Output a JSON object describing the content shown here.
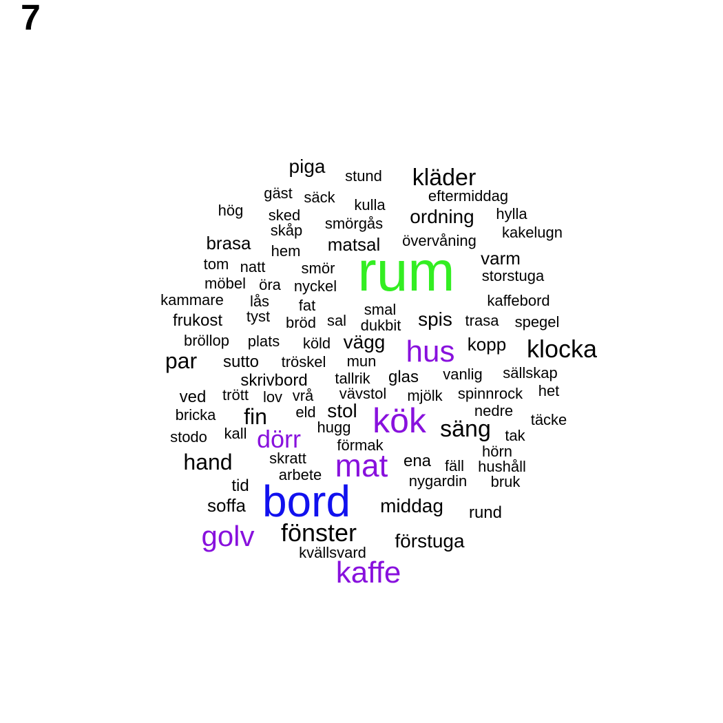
{
  "panel_label": "7",
  "colors": {
    "top": "#33ee22",
    "second": "#1111ee",
    "third": "#8811dd",
    "base": "#000000"
  },
  "chart_data": {
    "type": "wordcloud",
    "words": [
      {
        "text": "rum",
        "rank": 1
      },
      {
        "text": "bord",
        "rank": 2
      },
      {
        "text": "kök",
        "rank": 3
      },
      {
        "text": "mat",
        "rank": 3
      },
      {
        "text": "hus",
        "rank": 3
      },
      {
        "text": "golv",
        "rank": 3
      },
      {
        "text": "kaffe",
        "rank": 3
      },
      {
        "text": "dörr",
        "rank": 3
      },
      {
        "text": "klocka",
        "rank": 4
      },
      {
        "text": "fönster",
        "rank": 4
      },
      {
        "text": "kläder",
        "rank": 4
      },
      {
        "text": "säng",
        "rank": 4
      },
      {
        "text": "hand",
        "rank": 4
      },
      {
        "text": "par",
        "rank": 4
      },
      {
        "text": "middag",
        "rank": 4
      },
      {
        "text": "förstuga",
        "rank": 4
      },
      {
        "text": "fin",
        "rank": 4
      },
      {
        "text": "ordning",
        "rank": 5
      },
      {
        "text": "piga",
        "rank": 5
      },
      {
        "text": "spis",
        "rank": 5
      },
      {
        "text": "vägg",
        "rank": 5
      },
      {
        "text": "stol",
        "rank": 5
      },
      {
        "text": "matsal",
        "rank": 5
      },
      {
        "text": "brasa",
        "rank": 5
      },
      {
        "text": "varm",
        "rank": 5
      },
      {
        "text": "kopp",
        "rank": 5
      },
      {
        "text": "soffa",
        "rank": 5
      },
      {
        "text": "ena",
        "rank": 5
      },
      {
        "text": "glas",
        "rank": 5
      },
      {
        "text": "sutto",
        "rank": 5
      },
      {
        "text": "skrivbord",
        "rank": 5
      },
      {
        "text": "frukost",
        "rank": 5
      },
      {
        "text": "ved",
        "rank": 5
      },
      {
        "text": "rund",
        "rank": 5
      },
      {
        "text": "tid",
        "rank": 5
      },
      {
        "text": "hög",
        "rank": 6
      },
      {
        "text": "stund",
        "rank": 6
      },
      {
        "text": "eftermiddag",
        "rank": 6
      },
      {
        "text": "hylla",
        "rank": 6
      },
      {
        "text": "kakelugn",
        "rank": 6
      },
      {
        "text": "övervåning",
        "rank": 6
      },
      {
        "text": "storstuga",
        "rank": 6
      },
      {
        "text": "kaffebord",
        "rank": 6
      },
      {
        "text": "spegel",
        "rank": 6
      },
      {
        "text": "trasa",
        "rank": 6
      },
      {
        "text": "sällskap",
        "rank": 6
      },
      {
        "text": "vanlig",
        "rank": 6
      },
      {
        "text": "spinnrock",
        "rank": 6
      },
      {
        "text": "het",
        "rank": 6
      },
      {
        "text": "täcke",
        "rank": 6
      },
      {
        "text": "nedre",
        "rank": 6
      },
      {
        "text": "tak",
        "rank": 6
      },
      {
        "text": "hörn",
        "rank": 6
      },
      {
        "text": "fäll",
        "rank": 6
      },
      {
        "text": "hushåll",
        "rank": 6
      },
      {
        "text": "bruk",
        "rank": 6
      },
      {
        "text": "nygardin",
        "rank": 6
      },
      {
        "text": "mjölk",
        "rank": 6
      },
      {
        "text": "vävstol",
        "rank": 6
      },
      {
        "text": "tallrik",
        "rank": 6
      },
      {
        "text": "mun",
        "rank": 6
      },
      {
        "text": "tröskel",
        "rank": 6
      },
      {
        "text": "köld",
        "rank": 6
      },
      {
        "text": "dukbit",
        "rank": 6
      },
      {
        "text": "smal",
        "rank": 6
      },
      {
        "text": "sal",
        "rank": 6
      },
      {
        "text": "bröd",
        "rank": 6
      },
      {
        "text": "fat",
        "rank": 6
      },
      {
        "text": "nyckel",
        "rank": 6
      },
      {
        "text": "smör",
        "rank": 6
      },
      {
        "text": "hem",
        "rank": 6
      },
      {
        "text": "skåp",
        "rank": 6
      },
      {
        "text": "sked",
        "rank": 6
      },
      {
        "text": "gäst",
        "rank": 6
      },
      {
        "text": "säck",
        "rank": 6
      },
      {
        "text": "kulla",
        "rank": 6
      },
      {
        "text": "smörgås",
        "rank": 6
      },
      {
        "text": "tom",
        "rank": 6
      },
      {
        "text": "natt",
        "rank": 6
      },
      {
        "text": "möbel",
        "rank": 6
      },
      {
        "text": "öra",
        "rank": 6
      },
      {
        "text": "kammare",
        "rank": 6
      },
      {
        "text": "lås",
        "rank": 6
      },
      {
        "text": "tyst",
        "rank": 6
      },
      {
        "text": "bröllop",
        "rank": 6
      },
      {
        "text": "plats",
        "rank": 6
      },
      {
        "text": "trött",
        "rank": 6
      },
      {
        "text": "lov",
        "rank": 6
      },
      {
        "text": "vrå",
        "rank": 6
      },
      {
        "text": "bricka",
        "rank": 6
      },
      {
        "text": "eld",
        "rank": 6
      },
      {
        "text": "hugg",
        "rank": 6
      },
      {
        "text": "stodo",
        "rank": 6
      },
      {
        "text": "kall",
        "rank": 6
      },
      {
        "text": "förmak",
        "rank": 6
      },
      {
        "text": "skratt",
        "rank": 6
      },
      {
        "text": "arbete",
        "rank": 6
      },
      {
        "text": "kvällsvard",
        "rank": 6
      }
    ]
  }
}
